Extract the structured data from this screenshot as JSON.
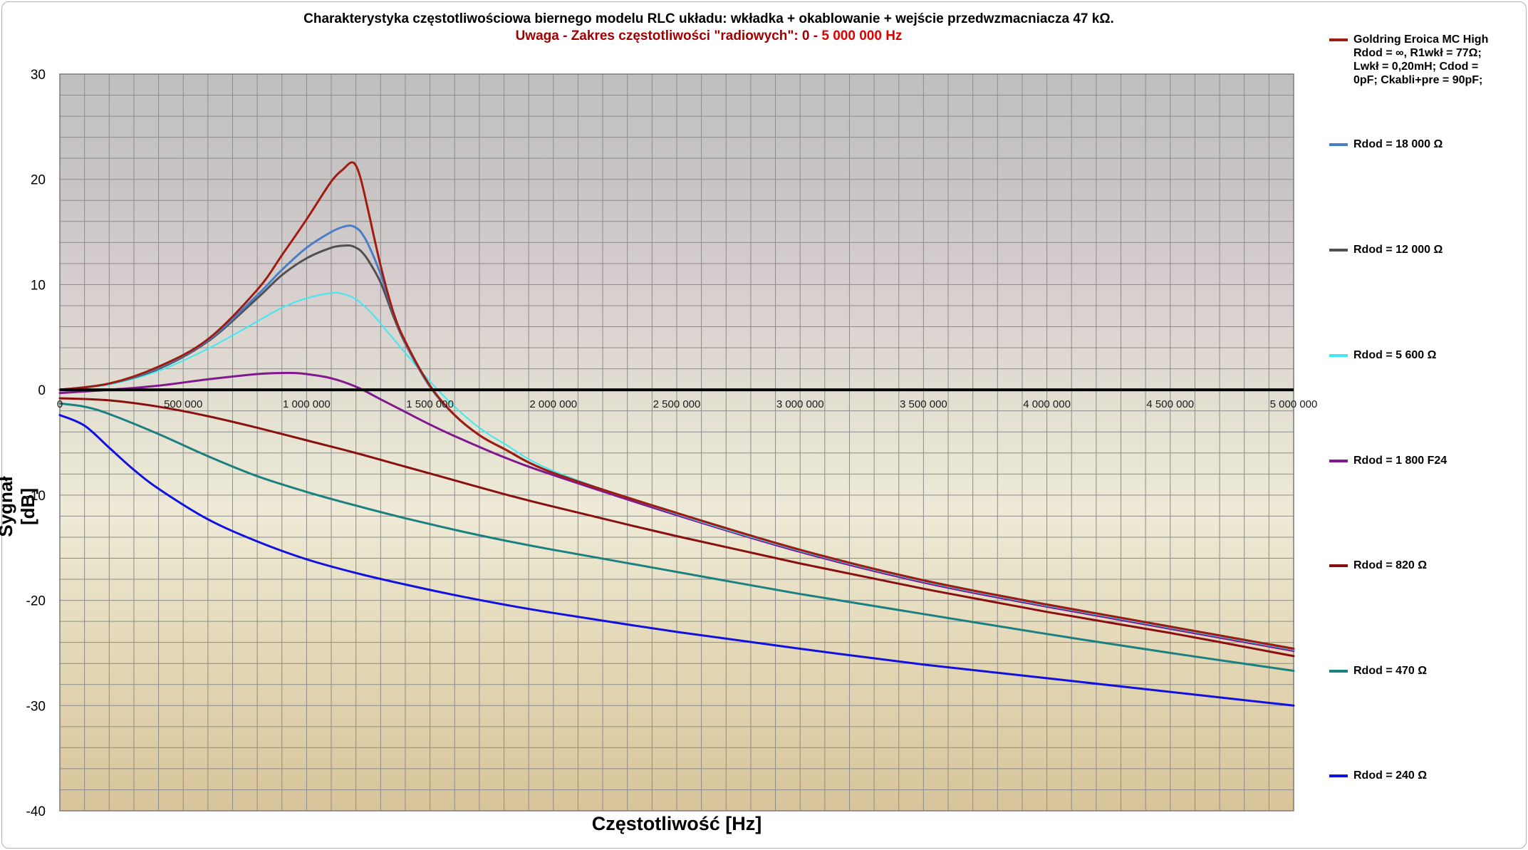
{
  "chart_data": {
    "type": "line",
    "title": "Charakterystyka częstotliwościowa biernego modelu RLC układu:   wkładka + okablowanie + wejście przedwzmacniacza 47 kΩ.",
    "subtitle_part1": "Uwaga - Zakres częstotliwości \"radiowych\":  0  -",
    "subtitle_part2": "5 000 000  Hz",
    "xlabel": "Częstotliwość    [Hz]",
    "ylabel": "Sygnał   [dB]",
    "xlim": [
      0,
      5000000
    ],
    "ylim": [
      -40,
      30
    ],
    "grid": true,
    "legend_position": "right",
    "x_ticks": [
      0,
      500000,
      1000000,
      1500000,
      2000000,
      2500000,
      3000000,
      3500000,
      4000000,
      4500000,
      5000000
    ],
    "x_tick_labels": [
      "0",
      "500 000",
      "1 000 000",
      "1 500 000",
      "2 000 000",
      "2 500 000",
      "3 000 000",
      "3 500 000",
      "4 000 000",
      "4 500 000",
      "5 000 000"
    ],
    "y_ticks": [
      -40,
      -30,
      -20,
      -10,
      0,
      10,
      20,
      30
    ],
    "y_tick_labels": [
      "-40",
      "-30",
      "-20",
      "-10",
      "0",
      "10",
      "20",
      "30"
    ],
    "series": [
      {
        "name": "Goldring Eroica MC High\nRdod = ∞,  R1wkł = 77Ω;\nLwkł = 0,20mH;  Cdod =\n0pF;  Ckabli+pre = 90pF;",
        "color": "#a01c10",
        "width": 3,
        "x": [
          0,
          200000,
          400000,
          600000,
          800000,
          900000,
          1000000,
          1100000,
          1150000,
          1180000,
          1200000,
          1220000,
          1250000,
          1300000,
          1350000,
          1400000,
          1500000,
          1600000,
          1700000,
          1800000,
          2000000,
          2500000,
          3000000,
          3500000,
          4000000,
          4500000,
          5000000
        ],
        "y": [
          0,
          0.6,
          2.2,
          4.8,
          9.5,
          12.8,
          16.2,
          19.8,
          21.0,
          21.6,
          21.3,
          20.0,
          17.0,
          11.8,
          7.5,
          4.6,
          0.4,
          -2.4,
          -4.3,
          -5.6,
          -7.9,
          -11.7,
          -15.2,
          -18.1,
          -20.4,
          -22.5,
          -24.6
        ]
      },
      {
        "name": "Rdod = 18 000  Ω",
        "color": "#4a7fc8",
        "width": 3,
        "x": [
          0,
          200000,
          400000,
          600000,
          800000,
          900000,
          1000000,
          1100000,
          1150000,
          1180000,
          1200000,
          1220000,
          1250000,
          1300000,
          1350000,
          1400000,
          1500000,
          1600000,
          1700000,
          1800000,
          2000000,
          2500000,
          3000000,
          3500000,
          4000000,
          4500000,
          5000000
        ],
        "y": [
          0,
          0.6,
          2.1,
          4.7,
          9.0,
          11.4,
          13.5,
          15.0,
          15.5,
          15.6,
          15.4,
          15.0,
          13.8,
          11.0,
          7.4,
          4.5,
          0.3,
          -2.4,
          -4.3,
          -5.6,
          -7.9,
          -11.7,
          -15.2,
          -18.1,
          -20.4,
          -22.5,
          -24.6
        ]
      },
      {
        "name": "Rdod = 12 000  Ω",
        "color": "#505050",
        "width": 3,
        "x": [
          0,
          200000,
          400000,
          600000,
          800000,
          900000,
          1000000,
          1100000,
          1150000,
          1180000,
          1200000,
          1220000,
          1250000,
          1300000,
          1350000,
          1400000,
          1500000,
          1600000,
          1700000,
          1800000,
          2000000,
          2500000,
          3000000,
          3500000,
          4000000,
          4500000,
          5000000
        ],
        "y": [
          0,
          0.6,
          2.0,
          4.6,
          8.7,
          10.9,
          12.5,
          13.5,
          13.7,
          13.7,
          13.5,
          13.2,
          12.3,
          10.2,
          7.1,
          4.4,
          0.3,
          -2.4,
          -4.3,
          -5.6,
          -7.9,
          -11.7,
          -15.2,
          -18.1,
          -20.4,
          -22.5,
          -24.6
        ]
      },
      {
        "name": "Rdod = 5 600  Ω",
        "color": "#40e8f0",
        "width": 2,
        "x": [
          0,
          200000,
          400000,
          600000,
          800000,
          900000,
          1000000,
          1100000,
          1150000,
          1200000,
          1250000,
          1300000,
          1400000,
          1500000,
          1600000,
          1700000,
          1800000,
          2000000,
          2500000,
          3000000,
          3500000,
          4000000,
          4500000,
          5000000
        ],
        "y": [
          0,
          0.5,
          1.8,
          3.9,
          6.5,
          7.8,
          8.7,
          9.2,
          9.1,
          8.6,
          7.6,
          6.3,
          3.5,
          0.8,
          -1.6,
          -3.6,
          -5.1,
          -7.7,
          -11.8,
          -15.3,
          -18.2,
          -20.5,
          -22.6,
          -24.7
        ]
      },
      {
        "name": "Rdod = 1 800  F24",
        "color": "#801890",
        "width": 3,
        "x": [
          0,
          200000,
          400000,
          600000,
          800000,
          900000,
          950000,
          1000000,
          1100000,
          1200000,
          1300000,
          1400000,
          1500000,
          1600000,
          1800000,
          2000000,
          2500000,
          3000000,
          3500000,
          4000000,
          4500000,
          5000000
        ],
        "y": [
          -0.3,
          0.0,
          0.4,
          1.0,
          1.5,
          1.6,
          1.6,
          1.5,
          1.1,
          0.3,
          -0.9,
          -2.1,
          -3.3,
          -4.4,
          -6.4,
          -8.1,
          -11.9,
          -15.4,
          -18.3,
          -20.6,
          -22.7,
          -24.8
        ]
      },
      {
        "name": "Rdod = 820  Ω",
        "color": "#8a1010",
        "width": 3,
        "x": [
          0,
          200000,
          400000,
          600000,
          800000,
          1000000,
          1200000,
          1400000,
          1600000,
          1800000,
          2000000,
          2500000,
          3000000,
          3500000,
          4000000,
          4500000,
          5000000
        ],
        "y": [
          -0.8,
          -1.0,
          -1.6,
          -2.5,
          -3.6,
          -4.8,
          -6.0,
          -7.3,
          -8.6,
          -9.9,
          -11.1,
          -13.9,
          -16.5,
          -18.9,
          -21.1,
          -23.1,
          -25.3
        ]
      },
      {
        "name": "Rdod = 470  Ω",
        "color": "#1a8080",
        "width": 3,
        "x": [
          0,
          100000,
          200000,
          400000,
          600000,
          800000,
          1000000,
          1200000,
          1400000,
          1600000,
          1800000,
          2000000,
          2500000,
          3000000,
          3500000,
          4000000,
          4500000,
          5000000
        ],
        "y": [
          -1.3,
          -1.6,
          -2.3,
          -4.2,
          -6.3,
          -8.2,
          -9.7,
          -11.0,
          -12.2,
          -13.3,
          -14.3,
          -15.2,
          -17.3,
          -19.4,
          -21.3,
          -23.2,
          -25.0,
          -26.7
        ]
      },
      {
        "name": "Rdod = 240  Ω",
        "color": "#1010e0",
        "width": 3,
        "x": [
          0,
          100000,
          200000,
          300000,
          400000,
          600000,
          800000,
          1000000,
          1200000,
          1400000,
          1600000,
          1800000,
          2000000,
          2500000,
          3000000,
          3500000,
          4000000,
          4500000,
          5000000
        ],
        "y": [
          -2.4,
          -3.4,
          -5.5,
          -7.6,
          -9.4,
          -12.3,
          -14.4,
          -16.1,
          -17.4,
          -18.5,
          -19.5,
          -20.4,
          -21.2,
          -23.0,
          -24.6,
          -26.1,
          -27.4,
          -28.7,
          -30.0
        ]
      }
    ]
  }
}
